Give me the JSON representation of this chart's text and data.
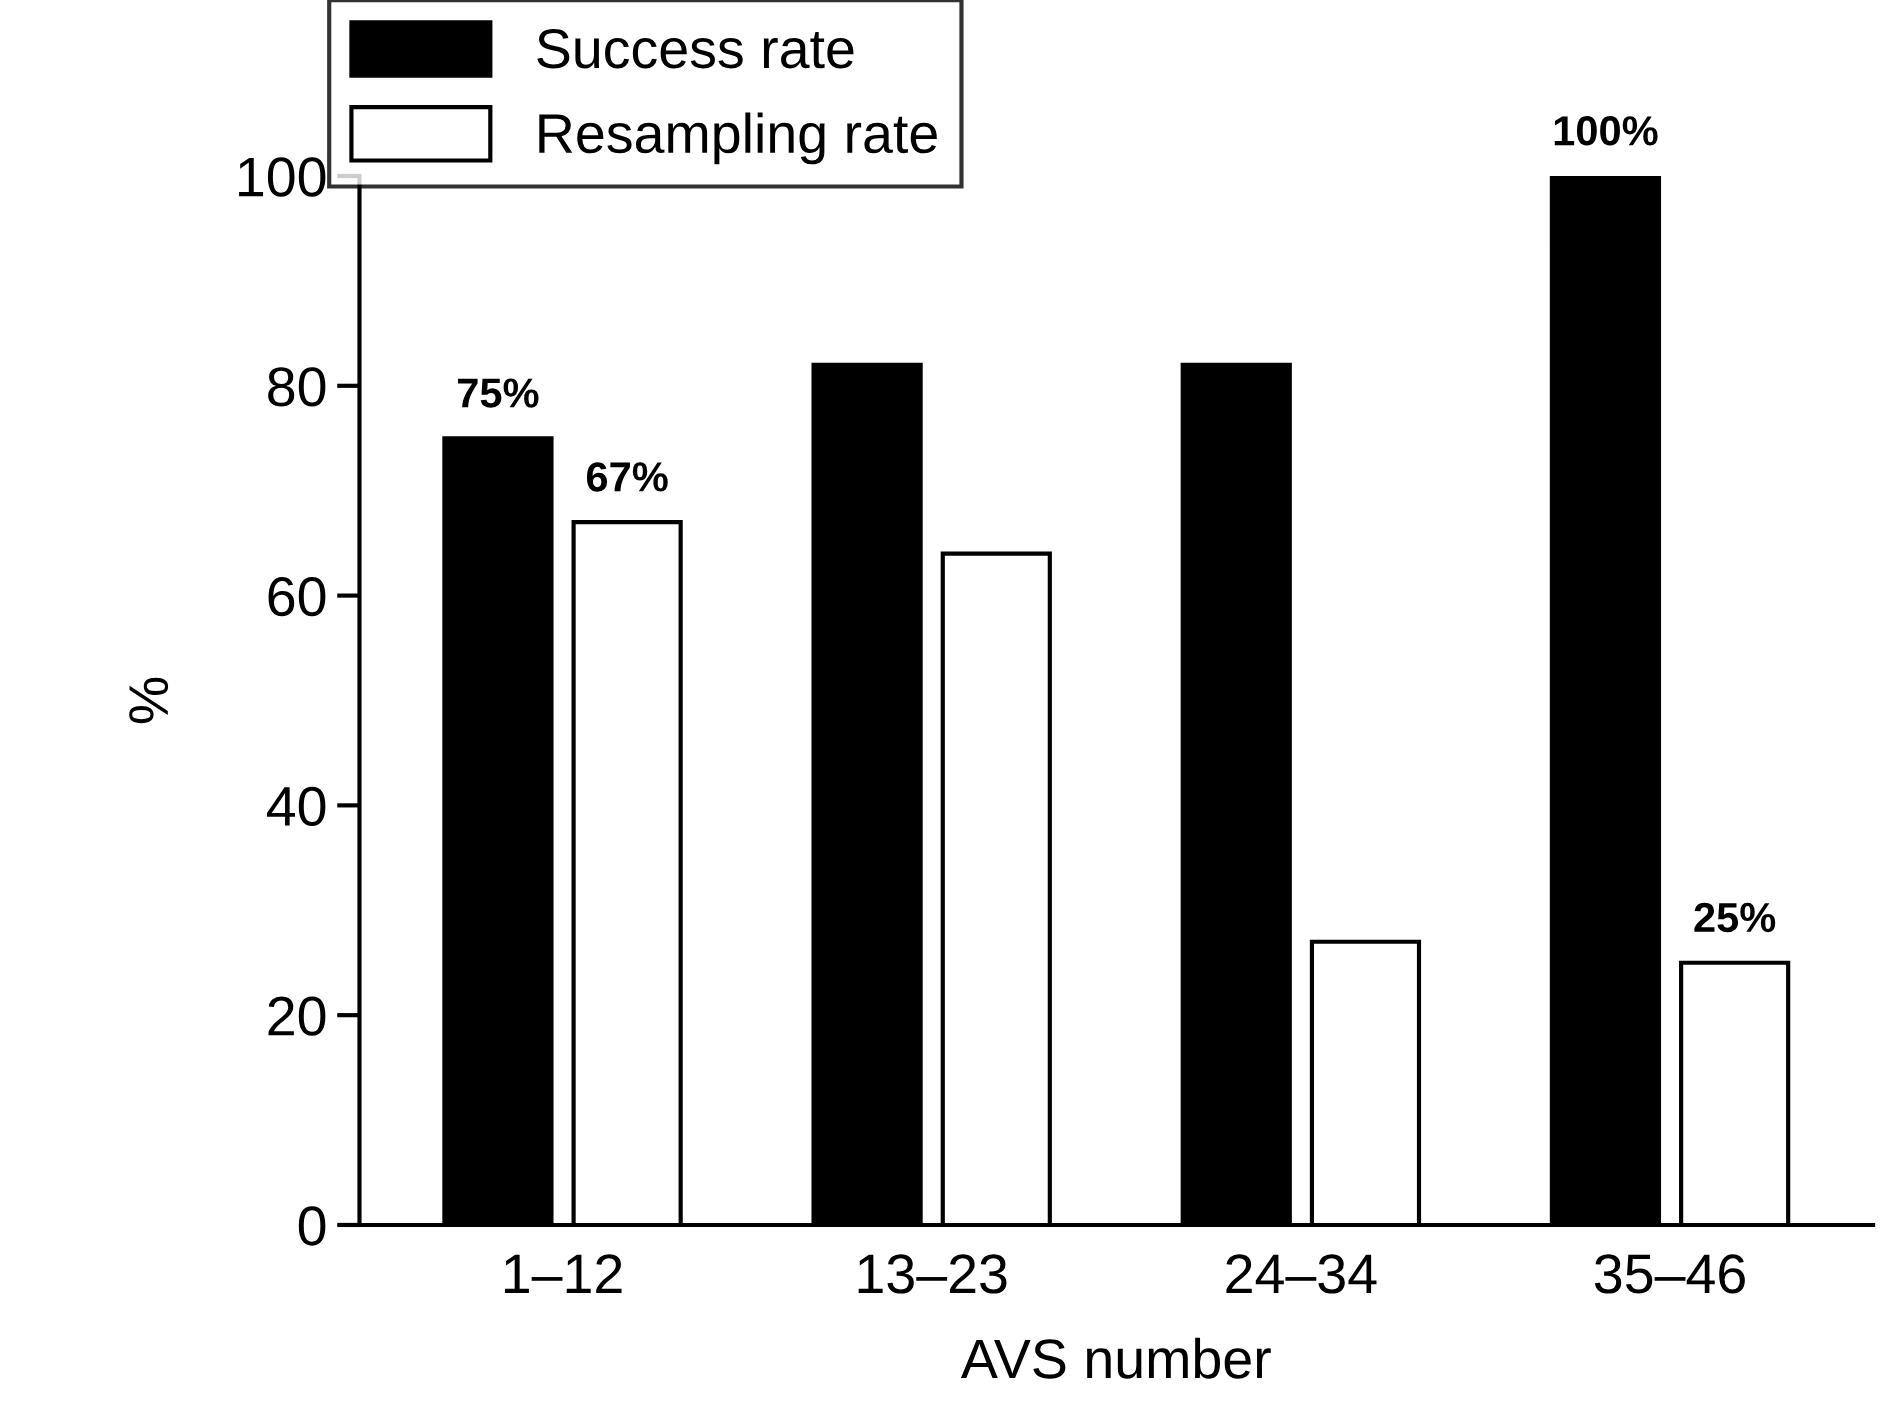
{
  "chart_data": {
    "type": "bar",
    "xlabel": "AVS number",
    "ylabel": "%",
    "categories": [
      "1–12",
      "13–23",
      "24–34",
      "35–46"
    ],
    "series": [
      {
        "name": "Success rate",
        "color": "#000000",
        "values": [
          75,
          82,
          82,
          100
        ],
        "value_labels": [
          "75%",
          null,
          null,
          "100%"
        ]
      },
      {
        "name": "Resampling rate",
        "color": "#ffffff",
        "values": [
          67,
          64,
          27,
          25
        ],
        "value_labels": [
          "67%",
          null,
          null,
          "25%"
        ]
      }
    ],
    "ylim": [
      0,
      100
    ],
    "yticks": [
      0,
      20,
      40,
      60,
      80,
      100
    ],
    "grid": false,
    "legend": "top left"
  }
}
